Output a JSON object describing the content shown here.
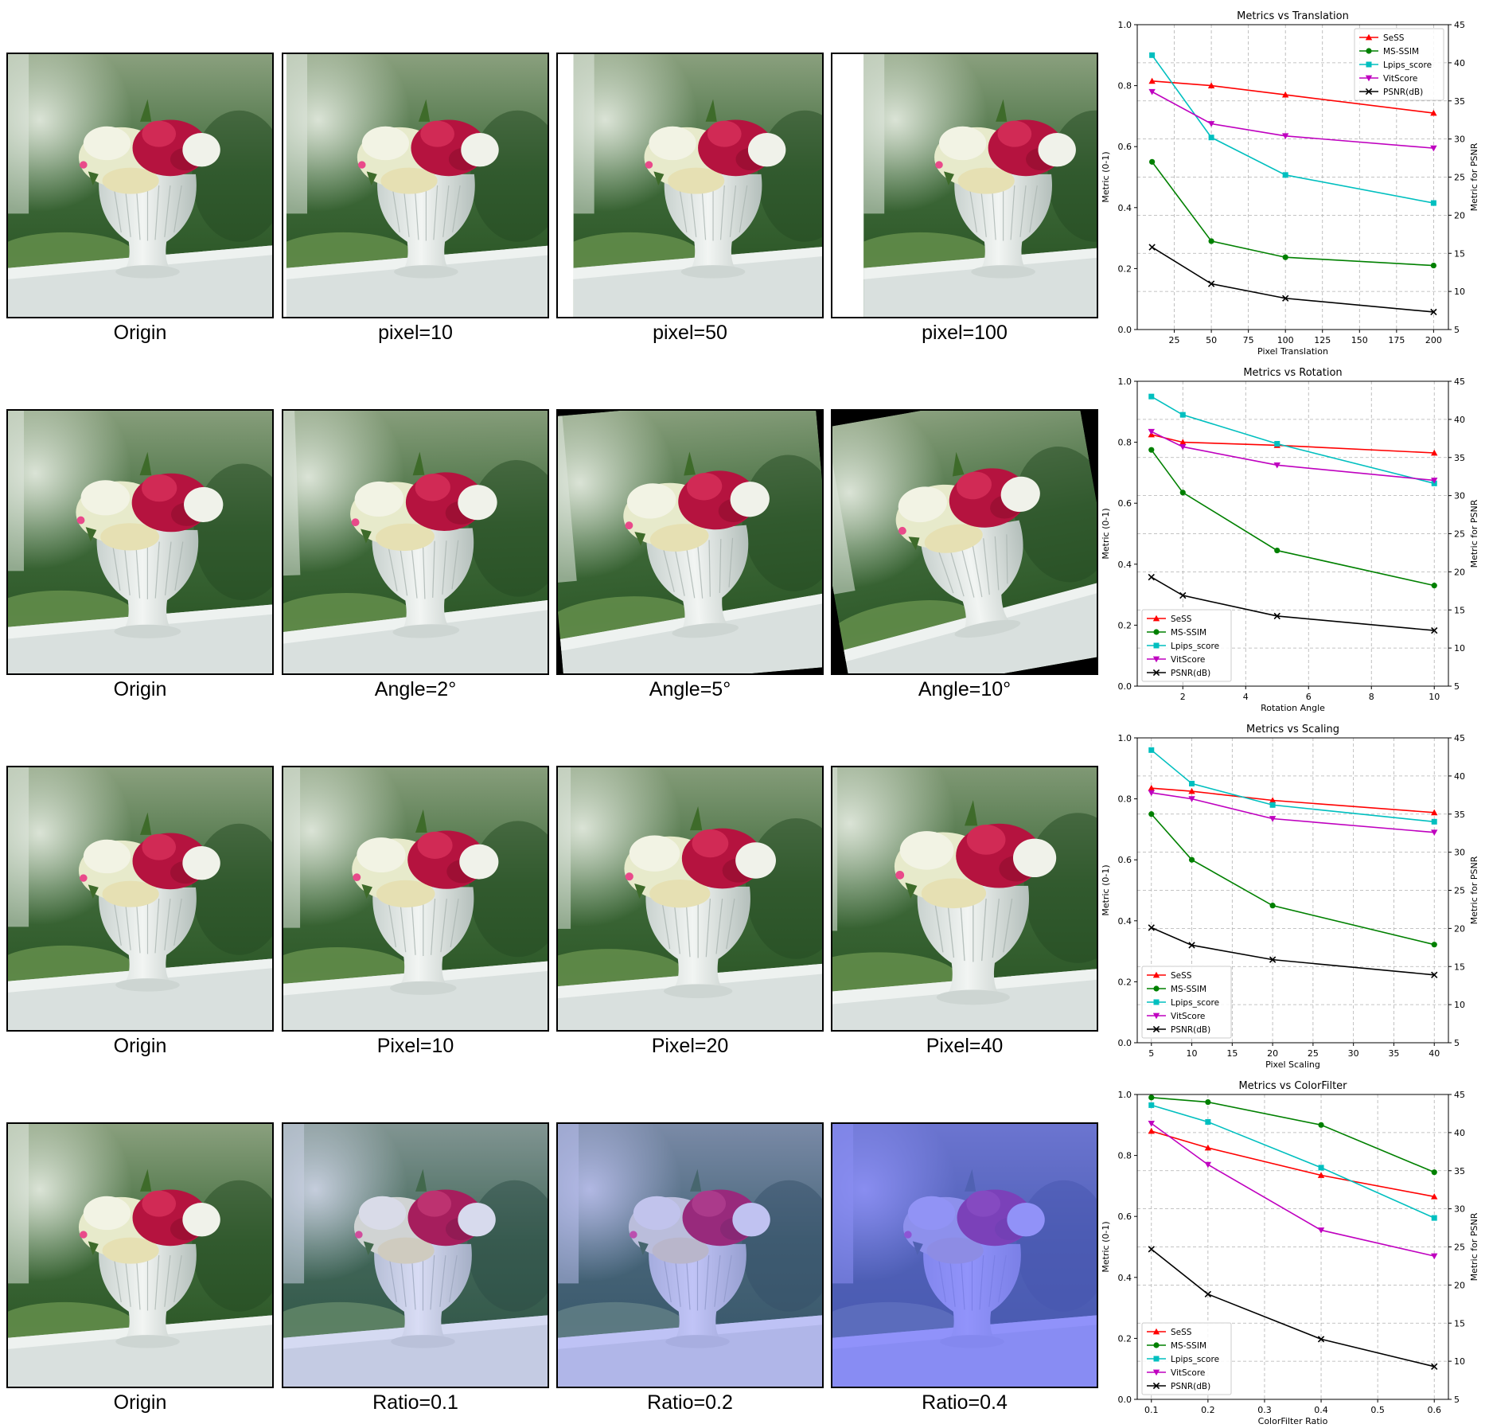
{
  "rows": [
    {
      "captions": [
        "Origin",
        "pixel=10",
        "pixel=50",
        "pixel=100"
      ],
      "effect": "translate",
      "amounts": [
        0,
        10,
        50,
        100
      ]
    },
    {
      "captions": [
        "Origin",
        "Angle=2°",
        "Angle=5°",
        "Angle=10°"
      ],
      "effect": "rotate",
      "amounts": [
        0,
        2,
        5,
        10
      ]
    },
    {
      "captions": [
        "Origin",
        "Pixel=10",
        "Pixel=20",
        "Pixel=40"
      ],
      "effect": "scale",
      "amounts": [
        0,
        10,
        20,
        40
      ]
    },
    {
      "captions": [
        "Origin",
        "Ratio=0.1",
        "Ratio=0.2",
        "Ratio=0.4"
      ],
      "effect": "colorfilter",
      "amounts": [
        0,
        0.1,
        0.2,
        0.4
      ]
    }
  ],
  "colors": {
    "SeSS": "#ff0000",
    "MS-SSIM": "#008000",
    "Lpips_score": "#00bfbf",
    "VitScore": "#bf00bf",
    "PSNR(dB)": "#000000"
  },
  "chart_data": [
    {
      "type": "line",
      "title": "Metrics vs Translation",
      "xlabel": "Pixel Translation",
      "ylabel": "Metric (0-1)",
      "y2label": "Metric for PSNR",
      "xlim": [
        0,
        210
      ],
      "xticks": [
        25,
        50,
        75,
        100,
        125,
        150,
        175,
        200
      ],
      "ylim": [
        0,
        1
      ],
      "yticks": [
        0.0,
        0.2,
        0.4,
        0.6,
        0.8,
        1.0
      ],
      "y2lim": [
        5,
        45
      ],
      "y2ticks": [
        5,
        10,
        15,
        20,
        25,
        30,
        35,
        40,
        45
      ],
      "legend": "top-right",
      "grid": true,
      "x": [
        10,
        50,
        100,
        200
      ],
      "series": [
        {
          "name": "SeSS",
          "marker": "triangle-up",
          "values": [
            0.815,
            0.8,
            0.77,
            0.71
          ]
        },
        {
          "name": "MS-SSIM",
          "marker": "circle",
          "values": [
            0.55,
            0.29,
            0.237,
            0.21
          ]
        },
        {
          "name": "Lpips_score",
          "marker": "square",
          "values": [
            0.9,
            0.63,
            0.507,
            0.415
          ]
        },
        {
          "name": "VitScore",
          "marker": "triangle-down",
          "values": [
            0.78,
            0.675,
            0.635,
            0.595
          ]
        },
        {
          "name": "PSNR(dB)",
          "marker": "x",
          "axis": "right",
          "values": [
            15.8,
            11.0,
            9.1,
            7.3
          ]
        }
      ]
    },
    {
      "type": "line",
      "title": "Metrics vs Rotation",
      "xlabel": "Rotation Angle",
      "ylabel": "Metric (0-1)",
      "y2label": "Metric for PSNR",
      "xlim": [
        0.55,
        10.45
      ],
      "xticks": [
        2,
        4,
        6,
        8,
        10
      ],
      "ylim": [
        0,
        1
      ],
      "yticks": [
        0.0,
        0.2,
        0.4,
        0.6,
        0.8,
        1.0
      ],
      "y2lim": [
        5,
        45
      ],
      "y2ticks": [
        5,
        10,
        15,
        20,
        25,
        30,
        35,
        40,
        45
      ],
      "legend": "bottom-left",
      "grid": true,
      "x": [
        1,
        2,
        5,
        10
      ],
      "series": [
        {
          "name": "SeSS",
          "marker": "triangle-up",
          "values": [
            0.825,
            0.8,
            0.79,
            0.765
          ]
        },
        {
          "name": "MS-SSIM",
          "marker": "circle",
          "values": [
            0.775,
            0.635,
            0.445,
            0.33
          ]
        },
        {
          "name": "Lpips_score",
          "marker": "square",
          "values": [
            0.95,
            0.89,
            0.795,
            0.665
          ]
        },
        {
          "name": "VitScore",
          "marker": "triangle-down",
          "values": [
            0.835,
            0.785,
            0.725,
            0.675
          ]
        },
        {
          "name": "PSNR(dB)",
          "marker": "x",
          "axis": "right",
          "values": [
            19.3,
            16.9,
            14.2,
            12.3
          ]
        }
      ]
    },
    {
      "type": "line",
      "title": "Metrics vs Scaling",
      "xlabel": "Pixel Scaling",
      "ylabel": "Metric (0-1)",
      "y2label": "Metric for PSNR",
      "xlim": [
        3.25,
        41.75
      ],
      "xticks": [
        5,
        10,
        15,
        20,
        25,
        30,
        35,
        40
      ],
      "ylim": [
        0,
        1
      ],
      "yticks": [
        0.0,
        0.2,
        0.4,
        0.6,
        0.8,
        1.0
      ],
      "y2lim": [
        5,
        45
      ],
      "y2ticks": [
        5,
        10,
        15,
        20,
        25,
        30,
        35,
        40,
        45
      ],
      "legend": "bottom-left",
      "grid": true,
      "x": [
        5,
        10,
        20,
        40
      ],
      "series": [
        {
          "name": "SeSS",
          "marker": "triangle-up",
          "values": [
            0.835,
            0.825,
            0.795,
            0.755
          ]
        },
        {
          "name": "MS-SSIM",
          "marker": "circle",
          "values": [
            0.75,
            0.6,
            0.45,
            0.322
          ]
        },
        {
          "name": "Lpips_score",
          "marker": "square",
          "values": [
            0.96,
            0.85,
            0.78,
            0.725
          ]
        },
        {
          "name": "VitScore",
          "marker": "triangle-down",
          "values": [
            0.82,
            0.8,
            0.735,
            0.69
          ]
        },
        {
          "name": "PSNR(dB)",
          "marker": "x",
          "axis": "right",
          "values": [
            20.1,
            17.8,
            15.9,
            13.9
          ]
        }
      ]
    },
    {
      "type": "line",
      "title": "Metrics vs ColorFilter",
      "xlabel": "ColorFilter Ratio",
      "ylabel": "Metric (0-1)",
      "y2label": "Metric for PSNR",
      "xlim": [
        0.075,
        0.625
      ],
      "xticks": [
        0.1,
        0.2,
        0.3,
        0.4,
        0.5,
        0.6
      ],
      "ylim": [
        0,
        1
      ],
      "yticks": [
        0.0,
        0.2,
        0.4,
        0.6,
        0.8,
        1.0
      ],
      "y2lim": [
        5,
        45
      ],
      "y2ticks": [
        5,
        10,
        15,
        20,
        25,
        30,
        35,
        40,
        45
      ],
      "legend": "bottom-left",
      "grid": true,
      "x": [
        0.1,
        0.2,
        0.4,
        0.6
      ],
      "series": [
        {
          "name": "SeSS",
          "marker": "triangle-up",
          "values": [
            0.88,
            0.825,
            0.735,
            0.665
          ]
        },
        {
          "name": "MS-SSIM",
          "marker": "circle",
          "values": [
            0.99,
            0.975,
            0.9,
            0.745
          ]
        },
        {
          "name": "Lpips_score",
          "marker": "square",
          "values": [
            0.965,
            0.91,
            0.76,
            0.595
          ]
        },
        {
          "name": "VitScore",
          "marker": "triangle-down",
          "values": [
            0.905,
            0.77,
            0.555,
            0.47
          ]
        },
        {
          "name": "PSNR(dB)",
          "marker": "x",
          "axis": "right",
          "values": [
            24.7,
            18.8,
            12.9,
            9.3
          ]
        }
      ]
    }
  ]
}
